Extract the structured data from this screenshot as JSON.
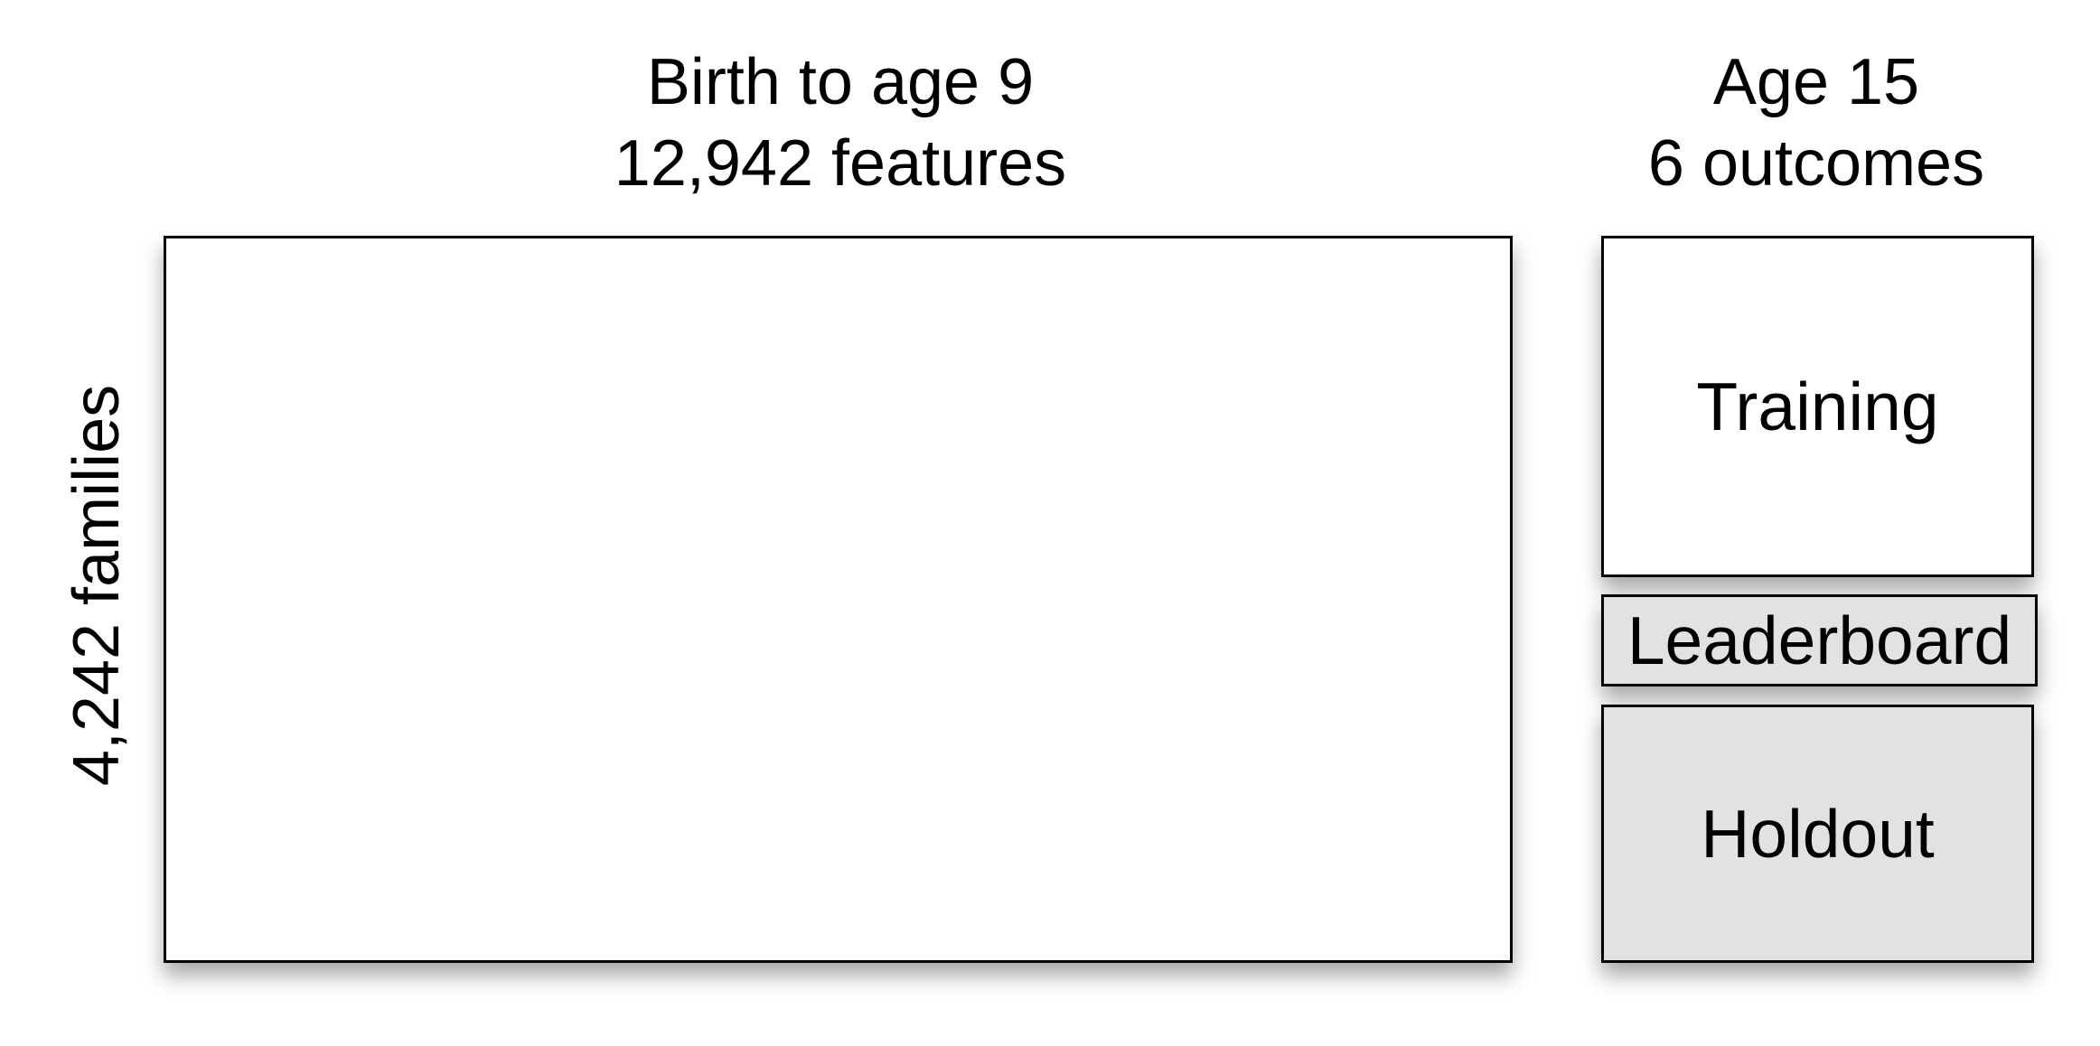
{
  "features_header": {
    "line1": "Birth to age 9",
    "line2": "12,942 features"
  },
  "outcomes_header": {
    "line1": "Age 15",
    "line2": "6 outcomes"
  },
  "rows_label": "4,242 families",
  "partitions": {
    "training": "Training",
    "leaderboard": "Leaderboard",
    "holdout": "Holdout"
  },
  "colors": {
    "border": "#000000",
    "training_fill": "#ffffff",
    "test_fill": "#e2e2e2"
  }
}
